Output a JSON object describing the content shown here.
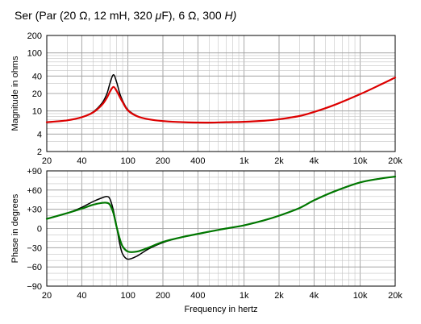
{
  "title_parts": {
    "prefix": "Ser (Par (20 Ω, 12 mH, 320 ",
    "mu": "μ",
    "middle": "F), 6 Ω, 300 ",
    "suffix": "H)"
  },
  "colors": {
    "magnitude_fit": "#dd0000",
    "phase_fit": "#007700",
    "measured": "#000000",
    "grid_major": "#999999",
    "grid_minor": "#c4c4c4"
  },
  "chart_data": [
    {
      "type": "line",
      "panel": "magnitude",
      "title": "Ser (Par (20 Ω, 12 mH, 320 μF), 6 Ω, 300 μH)",
      "xlabel": "",
      "ylabel": "Magnitude in ohms",
      "xscale": "log",
      "yscale": "log",
      "xlim": [
        20,
        20000
      ],
      "ylim": [
        2,
        200
      ],
      "grid": true,
      "x_ticks": [
        20,
        40,
        100,
        200,
        400,
        1000,
        2000,
        4000,
        10000,
        20000
      ],
      "x_tick_labels": [
        "20",
        "40",
        "100",
        "200",
        "400",
        "1k",
        "2k",
        "4k",
        "10k",
        "20k"
      ],
      "y_ticks": [
        2,
        4,
        10,
        20,
        40,
        100,
        200
      ],
      "y_tick_labels": [
        "2",
        "4",
        "10",
        "20",
        "40",
        "100",
        "200"
      ],
      "x": [
        20,
        30,
        40,
        50,
        60,
        66,
        70,
        75,
        80,
        85,
        90,
        100,
        120,
        150,
        200,
        300,
        500,
        700,
        1000,
        1500,
        2000,
        3000,
        4000,
        6000,
        10000,
        15000,
        20000
      ],
      "series": [
        {
          "values": [
            6.4,
            6.9,
            7.8,
            9.6,
            13.8,
            20,
            30,
            42,
            31,
            20,
            15,
            10.5,
            8.2,
            7.2,
            6.7,
            6.4,
            6.3,
            6.4,
            6.5,
            6.8,
            7.2,
            8.2,
            9.6,
            12.7,
            19.5,
            28.5,
            37.7
          ]
        },
        {
          "values": [
            6.4,
            6.9,
            7.8,
            9.4,
            12.9,
            17.0,
            21.5,
            26,
            22,
            17.5,
            14.2,
            10.2,
            8.1,
            7.2,
            6.7,
            6.4,
            6.3,
            6.4,
            6.5,
            6.8,
            7.2,
            8.2,
            9.6,
            12.7,
            19.5,
            28.5,
            37.7
          ]
        }
      ]
    },
    {
      "type": "line",
      "panel": "phase",
      "title": "",
      "xlabel": "Frequency in hertz",
      "ylabel": "Phase in degrees",
      "xscale": "log",
      "xlim": [
        20,
        20000
      ],
      "ylim": [
        -90,
        90
      ],
      "grid": true,
      "x_ticks": [
        20,
        40,
        100,
        200,
        400,
        1000,
        2000,
        4000,
        10000,
        20000
      ],
      "x_tick_labels": [
        "20",
        "40",
        "100",
        "200",
        "400",
        "1k",
        "2k",
        "4k",
        "10k",
        "20k"
      ],
      "y_ticks": [
        90,
        60,
        30,
        0,
        -30,
        -60,
        -90
      ],
      "y_tick_labels": [
        "+90",
        "+60",
        "+30",
        "0",
        "−30",
        "−60",
        "−90"
      ],
      "x": [
        20,
        30,
        40,
        50,
        60,
        66,
        70,
        75,
        80,
        85,
        90,
        100,
        120,
        150,
        200,
        300,
        500,
        700,
        1000,
        1500,
        2000,
        3000,
        4000,
        6000,
        10000,
        15000,
        20000
      ],
      "series": [
        {
          "values": [
            15,
            24,
            33,
            42,
            48,
            50,
            46,
            28,
            2,
            -24,
            -40,
            -48,
            -43,
            -32,
            -22,
            -13,
            -5,
            0,
            5,
            13,
            20,
            32,
            44,
            58,
            72,
            78,
            81
          ]
        },
        {
          "values": [
            15,
            24,
            31,
            37,
            40,
            40,
            37,
            24,
            2,
            -16,
            -28,
            -36,
            -36,
            -30,
            -21,
            -13,
            -5,
            0,
            5,
            13,
            20,
            32,
            44,
            58,
            72,
            78,
            81
          ]
        }
      ]
    }
  ]
}
